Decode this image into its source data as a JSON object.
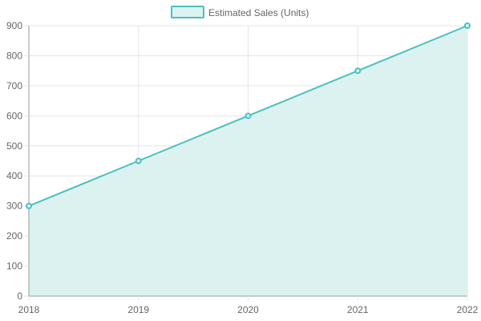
{
  "chart_data": {
    "type": "area",
    "x": [
      "2018",
      "2019",
      "2020",
      "2021",
      "2022"
    ],
    "series": [
      {
        "name": "Estimated Sales (Units)",
        "values": [
          300,
          450,
          600,
          750,
          900
        ]
      }
    ],
    "ylim": [
      0,
      900
    ],
    "yticks": [
      0,
      100,
      200,
      300,
      400,
      500,
      600,
      700,
      800,
      900
    ],
    "grid": true,
    "legend_position": "top",
    "colors": {
      "line": "#4bc0c0",
      "fill": "#dcf2f1",
      "grid": "#e5e5e5",
      "axis": "#999999"
    }
  }
}
